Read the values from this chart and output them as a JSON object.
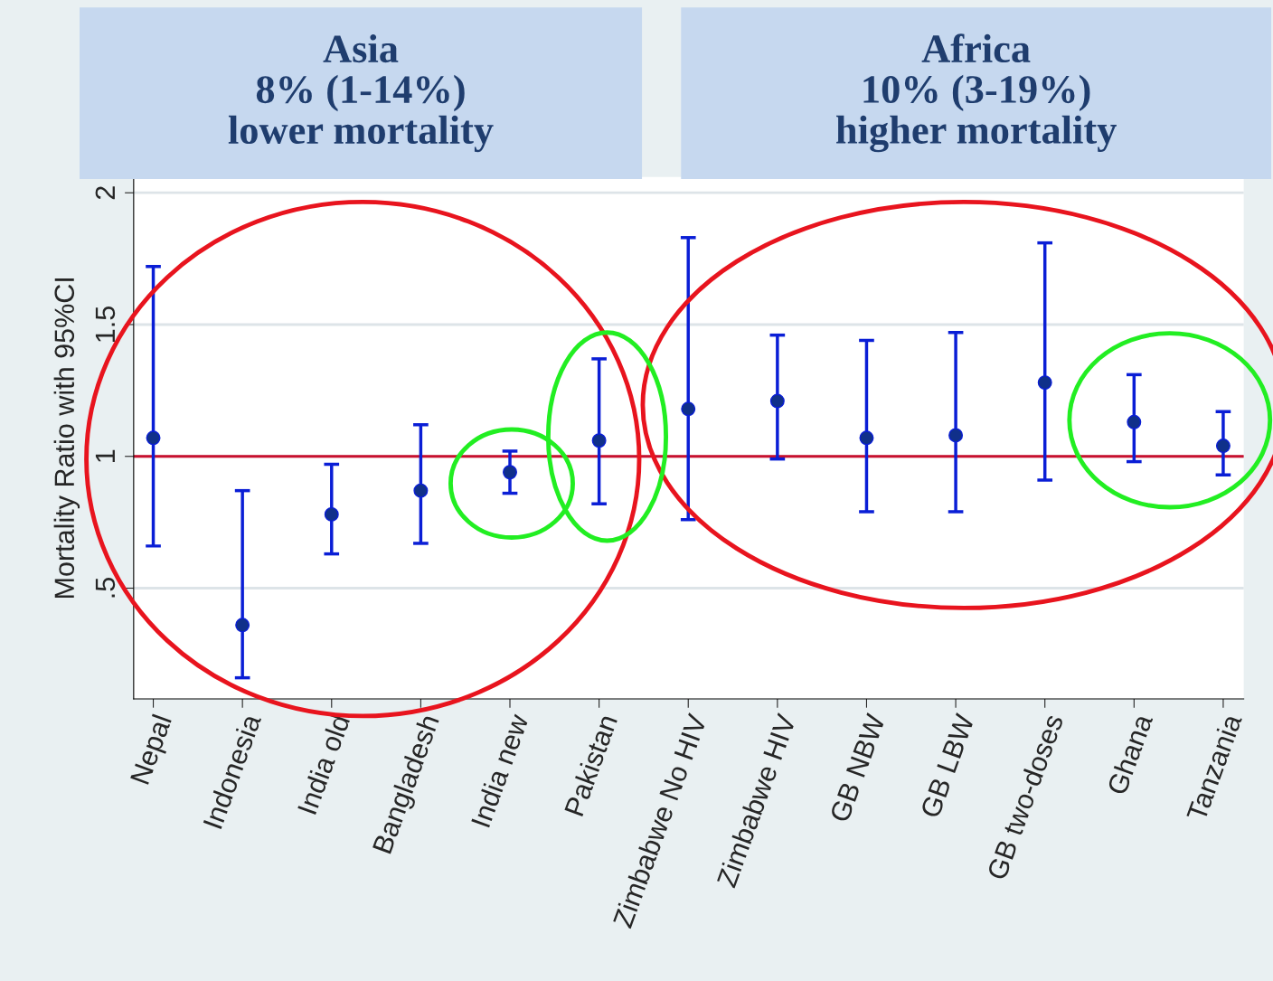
{
  "chart_data": {
    "type": "scatter",
    "categories": [
      "Nepal",
      "Indonesia",
      "India old",
      "Bangladesh",
      "India new",
      "Pakistan",
      "Zimbabwe No HIV",
      "Zimbabwe HIV",
      "GB NBW",
      "GB LBW",
      "GB two-doses",
      "Ghana",
      "Tanzania"
    ],
    "series": [
      {
        "color": "#0a1ed6",
        "marker": "circle",
        "values": [
          1.07,
          0.36,
          0.78,
          0.87,
          0.94,
          1.06,
          1.18,
          1.21,
          1.07,
          1.08,
          1.28,
          1.13,
          1.04
        ],
        "errors": [
          [
            0.66,
            1.72
          ],
          [
            0.16,
            0.87
          ],
          [
            0.63,
            0.97
          ],
          [
            0.67,
            1.12
          ],
          [
            0.86,
            1.02
          ],
          [
            0.82,
            1.37
          ],
          [
            0.76,
            1.83
          ],
          [
            0.99,
            1.46
          ],
          [
            0.79,
            1.44
          ],
          [
            0.79,
            1.47
          ],
          [
            0.91,
            1.81
          ],
          [
            0.98,
            1.31
          ],
          [
            0.93,
            1.17
          ]
        ]
      }
    ],
    "ylabel": "Mortality Ratio with 95%CI",
    "ylim": [
      0.08,
      2.06
    ],
    "yticks": [
      {
        "value": 0.5,
        "label": ".5"
      },
      1,
      1.5,
      2
    ],
    "grid": "y",
    "ref_lines": [
      {
        "axis": "y",
        "value": 1,
        "color": "#c8102e"
      }
    ],
    "annotations": [
      "Asia\n8% (1-14%)\nlower mortality",
      "Africa\n10% (3-19%)\nhigher mortality"
    ]
  }
}
